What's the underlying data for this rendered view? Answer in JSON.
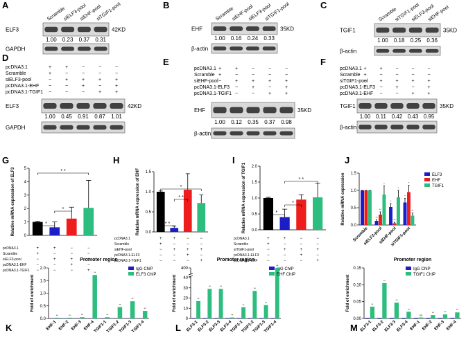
{
  "blots": [
    {
      "label": "A",
      "lanes": [
        "Scramble",
        "siELF3-pool",
        "siEHF-pool",
        "siTGIF1-pool"
      ],
      "rows": [
        {
          "name": "ELF3",
          "size": "42KD",
          "values": [
            "1.00",
            "0.23",
            "0.37",
            "0.31"
          ]
        },
        {
          "name": "GAPDH"
        }
      ]
    },
    {
      "label": "B",
      "lanes": [
        "Scramble",
        "siEHF-pool",
        "siELF3-pool",
        "siTGIF1-pool"
      ],
      "rows": [
        {
          "name": "EHF",
          "size": "35KD",
          "values": [
            "1.00",
            "0.16",
            "0.24",
            "0.33"
          ]
        },
        {
          "name": "β-actin"
        }
      ]
    },
    {
      "label": "C",
      "lanes": [
        "Scramble",
        "siTGIF1-pool",
        "siELF3-pool",
        "siEHF-pool"
      ],
      "rows": [
        {
          "name": "TGIF1",
          "size": "35KD",
          "values": [
            "1.00",
            "0.18",
            "0.25",
            "0.36"
          ]
        },
        {
          "name": "β-actin"
        }
      ]
    },
    {
      "label": "D",
      "conditions": [
        {
          "name": "pcDNA3.1",
          "signs": [
            "+",
            "+",
            "−",
            "−",
            "−"
          ]
        },
        {
          "name": "Scramble",
          "signs": [
            "+",
            "−",
            "−",
            "−",
            "−"
          ]
        },
        {
          "name": "siELF3-pool",
          "signs": [
            "−",
            "+",
            "+",
            "+",
            "+"
          ]
        },
        {
          "name": "pcDNA3.1-EHF",
          "signs": [
            "−",
            "−",
            "+",
            "−",
            "+"
          ]
        },
        {
          "name": "pcDNA3.1-TGIF1",
          "signs": [
            "−",
            "−",
            "−",
            "+",
            "+"
          ]
        }
      ],
      "rows": [
        {
          "name": "ELF3",
          "size": "42KD",
          "values": [
            "1.00",
            "0.45",
            "0.91",
            "0.87",
            "1.01"
          ]
        },
        {
          "name": "GAPDH"
        }
      ]
    },
    {
      "label": "E",
      "conditions": [
        {
          "name": "pcDNA3.1",
          "signs": [
            "+",
            "+",
            "−",
            "−",
            "−"
          ]
        },
        {
          "name": "Scramble",
          "signs": [
            "+",
            "−",
            "−",
            "−",
            "−"
          ]
        },
        {
          "name": "siEHF-pool",
          "signs": [
            "−",
            "+",
            "+",
            "+",
            "+"
          ]
        },
        {
          "name": "pcDNA3.1-ELF3",
          "signs": [
            "−",
            "−",
            "+",
            "−",
            "+"
          ]
        },
        {
          "name": "pcDNA3.1-TGIF1",
          "signs": [
            "−",
            "−",
            "−",
            "+",
            "+"
          ]
        }
      ],
      "rows": [
        {
          "name": "EHF",
          "size": "35KD",
          "values": [
            "1.00",
            "0.12",
            "0.35",
            "0.37",
            "0.98"
          ]
        },
        {
          "name": "β-actin"
        }
      ]
    },
    {
      "label": "F",
      "conditions": [
        {
          "name": "pcDNA3.1",
          "signs": [
            "+",
            "+",
            "−",
            "−",
            "−"
          ]
        },
        {
          "name": "Scramble",
          "signs": [
            "+",
            "−",
            "−",
            "−",
            "−"
          ]
        },
        {
          "name": "siTGIF1-pool",
          "signs": [
            "−",
            "+",
            "+",
            "+",
            "+"
          ]
        },
        {
          "name": "pcDNA3.1-ELF3",
          "signs": [
            "−",
            "−",
            "+",
            "−",
            "+"
          ]
        },
        {
          "name": "pcDNA3.1-EHF",
          "signs": [
            "−",
            "−",
            "−",
            "+",
            "+"
          ]
        }
      ],
      "rows": [
        {
          "name": "TGIF1",
          "size": "35KD",
          "values": [
            "1.00",
            "0.11",
            "0.42",
            "0.43",
            "0.95"
          ]
        },
        {
          "name": "β-actin"
        }
      ]
    }
  ],
  "chart_data": [
    {
      "type": "bar",
      "label": "G",
      "y_label": "Relative mRNA expression of ELF3",
      "values": [
        1.0,
        0.6,
        1.25,
        2.05
      ],
      "errors": [
        0.05,
        0.4,
        0.85,
        2.05
      ],
      "colors": [
        "#000000",
        "#1c1cc8",
        "#ee1c1c",
        "#2dbd7e"
      ],
      "ylim": [
        0,
        5
      ],
      "yticks": [
        0,
        1,
        2,
        3,
        4,
        5
      ],
      "annotations": [
        "*",
        "*",
        "* *"
      ],
      "conditions": [
        {
          "name": "pcDNA3.1",
          "signs": [
            "+",
            "+",
            "−",
            "−"
          ]
        },
        {
          "name": "Scramble",
          "signs": [
            "+",
            "−",
            "−",
            "−"
          ]
        },
        {
          "name": "siELF3-pool",
          "signs": [
            "−",
            "+",
            "+",
            "+"
          ]
        },
        {
          "name": "pcDNA3.1-EHF",
          "signs": [
            "−",
            "−",
            "+",
            "−"
          ]
        },
        {
          "name": "pcDNA3.1-TGIF1",
          "signs": [
            "−",
            "−",
            "−",
            "+"
          ]
        }
      ]
    },
    {
      "type": "bar",
      "label": "H",
      "y_label": "Relative mRNA expression of EHF",
      "values": [
        1.0,
        0.1,
        1.05,
        0.72
      ],
      "errors": [
        0.02,
        0.05,
        0.4,
        0.2
      ],
      "colors": [
        "#000000",
        "#1c1cc8",
        "#ee1c1c",
        "#2dbd7e"
      ],
      "ylim": [
        0,
        1.5
      ],
      "yticks": [
        {
          "value": 0,
          "label": "0.0"
        },
        0.5,
        {
          "value": 1,
          "label": "1.0"
        },
        1.5
      ],
      "annotations": [
        "* *",
        "* *",
        "*"
      ],
      "conditions": [
        {
          "name": "pcDNA3.1",
          "signs": [
            "+",
            "+",
            "−",
            "−"
          ]
        },
        {
          "name": "Scramble",
          "signs": [
            "+",
            "−",
            "−",
            "−"
          ]
        },
        {
          "name": "siEHF-pool",
          "signs": [
            "−",
            "+",
            "+",
            "+"
          ]
        },
        {
          "name": "pcDNA3.1-ELF3",
          "signs": [
            "−",
            "−",
            "+",
            "−"
          ]
        },
        {
          "name": "pcDNA3.1-TGIF1",
          "signs": [
            "−",
            "−",
            "−",
            "+"
          ]
        }
      ]
    },
    {
      "type": "bar",
      "label": "I",
      "y_label": "Relative mRNA expression of TGIF1",
      "values": [
        1.0,
        0.4,
        0.95,
        1.02
      ],
      "errors": [
        0.02,
        0.25,
        0.15,
        0.45
      ],
      "colors": [
        "#000000",
        "#1c1cc8",
        "#ee1c1c",
        "#2dbd7e"
      ],
      "ylim": [
        0,
        2
      ],
      "yticks": [
        {
          "value": 0,
          "label": "0.0"
        },
        0.5,
        {
          "value": 1,
          "label": "1.0"
        },
        1.5,
        {
          "value": 2,
          "label": "2.0"
        }
      ],
      "annotations": [
        "*",
        "*",
        "* *"
      ],
      "conditions": [
        {
          "name": "pcDNA3.1",
          "signs": [
            "+",
            "+",
            "−",
            "−"
          ]
        },
        {
          "name": "Scramble",
          "signs": [
            "+",
            "−",
            "−",
            "−"
          ]
        },
        {
          "name": "siTGIF1-pool",
          "signs": [
            "−",
            "+",
            "+",
            "+"
          ]
        },
        {
          "name": "pcDNA3.1-ELF3",
          "signs": [
            "−",
            "−",
            "+",
            "−"
          ]
        },
        {
          "name": "pcDNA3.1-EHF",
          "signs": [
            "−",
            "−",
            "−",
            "+"
          ]
        }
      ]
    },
    {
      "type": "bar",
      "label": "J",
      "y_label": "Relative mRNA expression",
      "categories": [
        "Scramble",
        "siELF3-pool",
        "siEHF-pool",
        "siTGIF1-pool"
      ],
      "ylim": [
        0,
        1.5
      ],
      "yticks": [
        {
          "value": 0,
          "label": "0.0"
        },
        0.5,
        {
          "value": 1,
          "label": "1.0"
        },
        1.5
      ],
      "legend": "upper right",
      "series": [
        {
          "name": "ELF3",
          "color": "#1c1cc8",
          "values": [
            1.0,
            0.12,
            0.52,
            0.65
          ],
          "errors": [
            0,
            0.03,
            0.1,
            0.12
          ],
          "significance": [
            null,
            "**",
            "*",
            "*"
          ]
        },
        {
          "name": "EHF",
          "color": "#ee1c1c",
          "values": [
            1.0,
            0.3,
            0.05,
            0.95
          ],
          "errors": [
            0,
            0.08,
            0.03,
            0.2
          ],
          "significance": [
            null,
            "**",
            "**",
            "*"
          ]
        },
        {
          "name": "TGIF1",
          "color": "#2dbd7e",
          "values": [
            1.0,
            0.88,
            0.8,
            0.27
          ],
          "errors": [
            0,
            0.25,
            0.2,
            0.08
          ],
          "significance": [
            null,
            "*",
            "*",
            "**"
          ]
        }
      ]
    },
    {
      "type": "bar",
      "label": "K",
      "title": "Promoter region",
      "y_label": "Fold of enrichment",
      "categories": [
        "EHF-1",
        "EHF-2",
        "EHF-3",
        "EHF-4",
        "TGIF1-1",
        "TGIF1-2",
        "TGIF1-3",
        "TGIF1-4"
      ],
      "ylim": [
        0,
        2
      ],
      "yticks": [
        {
          "value": 0,
          "label": "0.0"
        },
        0.5,
        {
          "value": 1,
          "label": "1.0"
        },
        1.5,
        {
          "value": 2,
          "label": "2.0"
        }
      ],
      "legend": "upper right",
      "series": [
        {
          "name": "IgG ChIP",
          "color": "#1c1cc8",
          "values": [
            0.01,
            0.01,
            0.01,
            0.01,
            0.01,
            0.01,
            0.01,
            0.01
          ]
        },
        {
          "name": "ELF3 ChIP",
          "color": "#2dbd7e",
          "values": [
            0.03,
            0.03,
            0.05,
            1.72,
            0.05,
            0.45,
            0.68,
            0.3
          ],
          "significance": [
            "**",
            "**",
            "**",
            "**",
            "**",
            "**",
            "**",
            "**"
          ]
        }
      ]
    },
    {
      "type": "bar",
      "label": "L",
      "title": "Promoter region",
      "y_label": "Fold of enrichment",
      "categories": [
        "ELF3-1",
        "ELF3-2",
        "ELF3-3",
        "ELF3-4",
        "TGIF1-1",
        "TGIF1-2",
        "TGIF1-3",
        "TGIF1-4"
      ],
      "ylim": [
        0,
        400
      ],
      "yticks": [
        0,
        10,
        20,
        30,
        40,
        400
      ],
      "axis_break": true,
      "legend": "upper right",
      "series": [
        {
          "name": "IgG ChIP",
          "color": "#1c1cc8",
          "values": [
            0.5,
            0.5,
            0.5,
            0.5,
            0.5,
            0.5,
            0.5,
            0.5
          ]
        },
        {
          "name": "EHF ChIP",
          "color": "#2dbd7e",
          "values": [
            17,
            29,
            29,
            1,
            11,
            27,
            13,
            400
          ],
          "significance": [
            "**",
            "**",
            "**",
            "**",
            "**",
            "**",
            "**",
            "**"
          ]
        }
      ]
    },
    {
      "type": "bar",
      "label": "M",
      "title": "Promoter region",
      "y_label": "Fold of enrichment",
      "categories": [
        "ELF3-1",
        "ELF3-2",
        "ELF3-3",
        "ELF3-4",
        "EHF-1",
        "EHF-2",
        "EHF-3",
        "EHF-4"
      ],
      "ylim": [
        0,
        0.15
      ],
      "yticks": [
        {
          "value": 0,
          "label": "0.00"
        },
        0.05,
        {
          "value": 0.1,
          "label": "0.10"
        },
        0.15
      ],
      "legend": "upper right",
      "series": [
        {
          "name": "IgG ChIP",
          "color": "#1c1cc8",
          "values": [
            0.002,
            0.002,
            0.002,
            0.002,
            0.002,
            0.002,
            0.002,
            0.002
          ]
        },
        {
          "name": "TGIF1 ChIP",
          "color": "#2dbd7e",
          "values": [
            0.035,
            0.105,
            0.047,
            0.02,
            0.003,
            0.01,
            0.012,
            0.018
          ],
          "significance": [
            "**",
            "**",
            "**",
            "**",
            "ns",
            "**",
            "**",
            "**"
          ]
        }
      ]
    }
  ]
}
